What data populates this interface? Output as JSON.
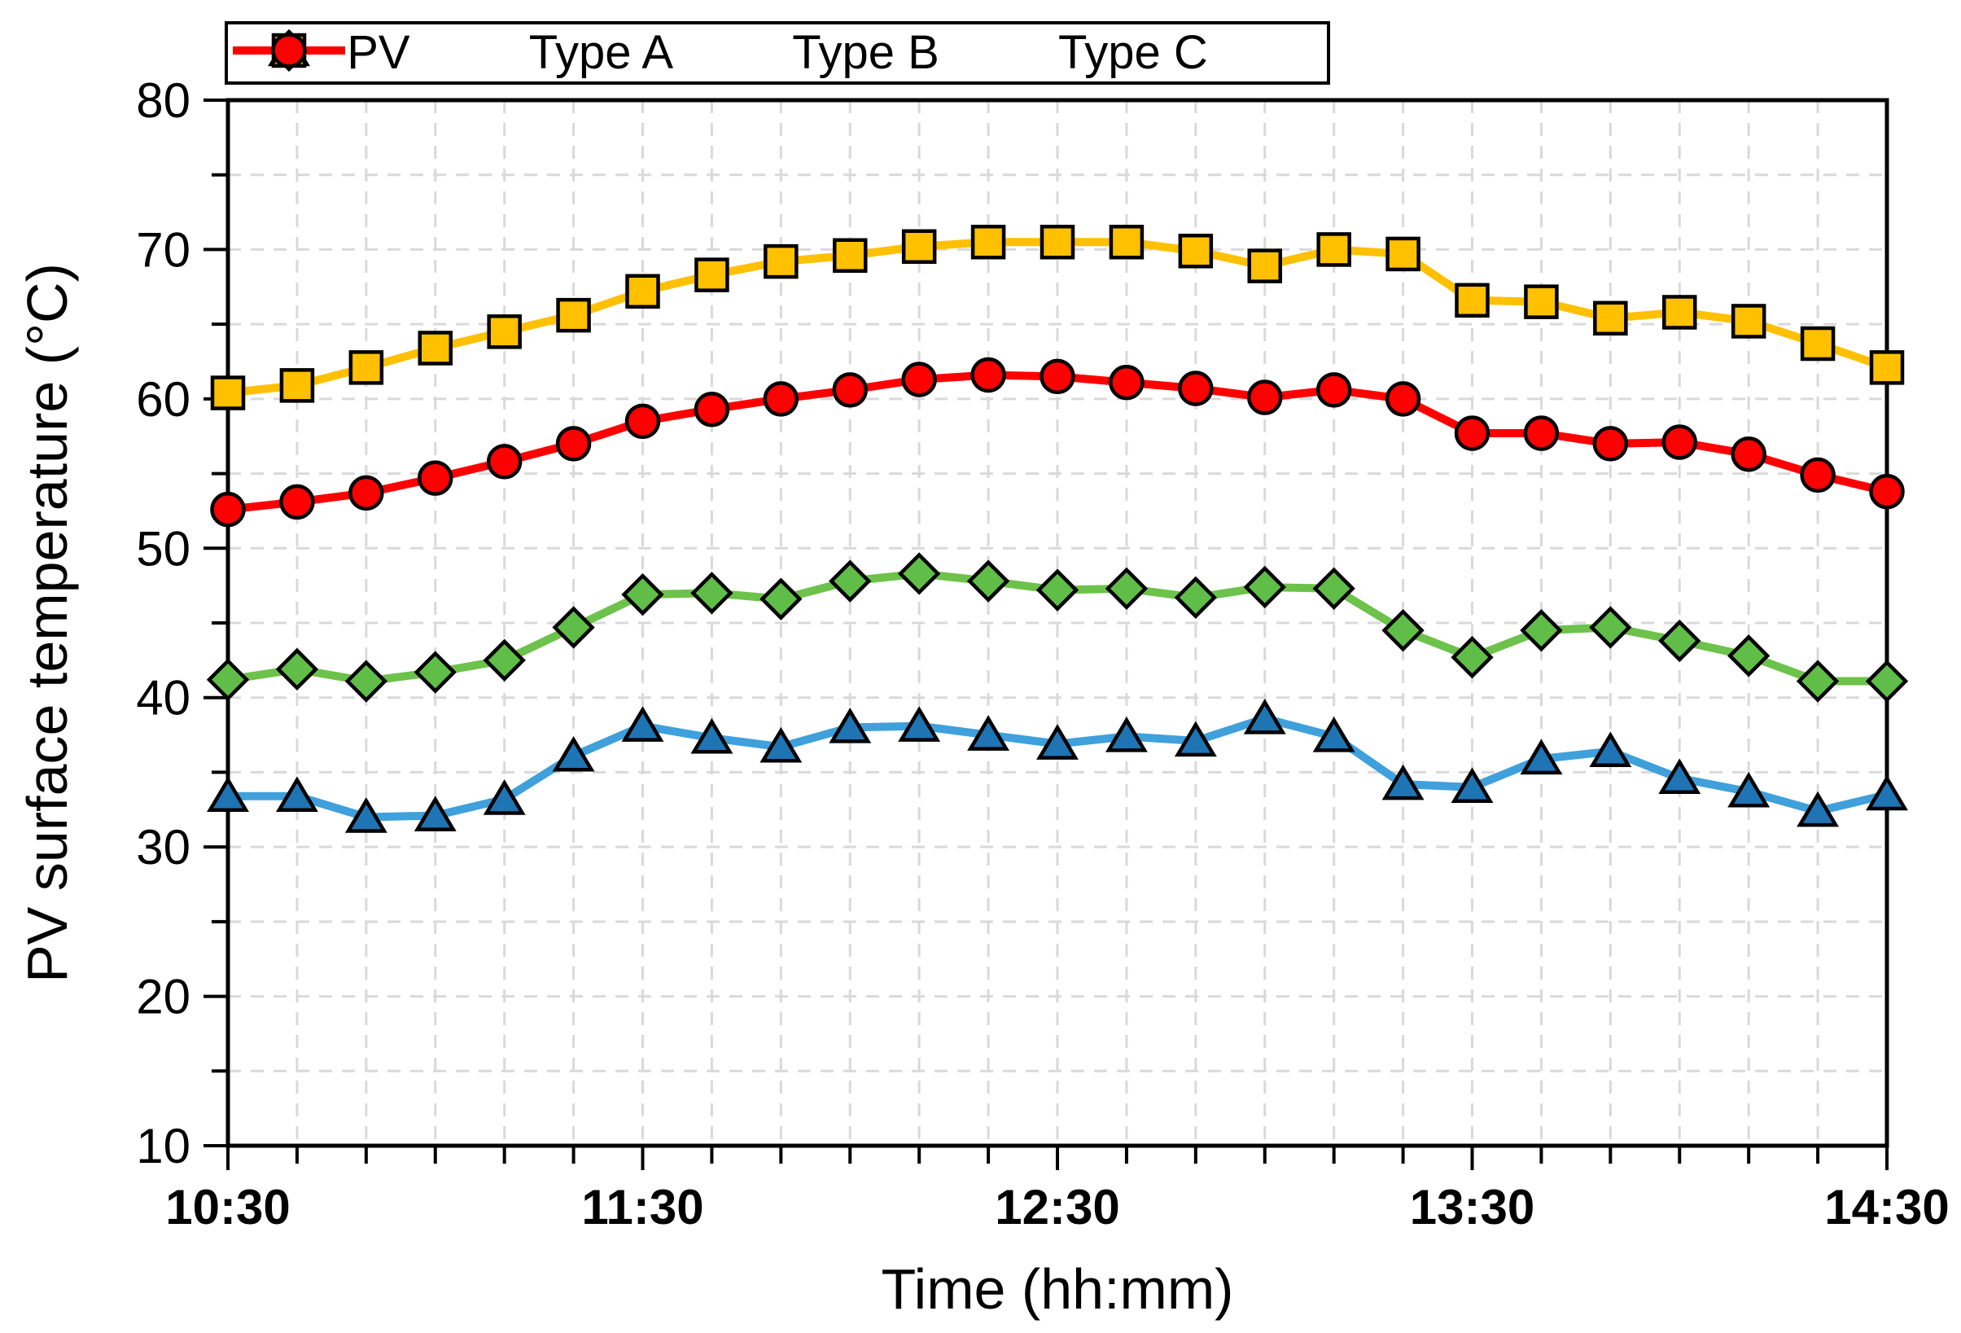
{
  "axes": {
    "x_title": "Time (hh:mm)",
    "y_title": "PV surface temperature (°C)"
  },
  "legend": {
    "items": [
      "PV",
      "Type A",
      "Type B",
      "Type C"
    ]
  },
  "chart_data": {
    "type": "line",
    "title": "",
    "xlabel": "Time (hh:mm)",
    "ylabel": "PV surface temperature (°C)",
    "x": [
      "10:30",
      "10:40",
      "10:50",
      "11:00",
      "11:10",
      "11:20",
      "11:30",
      "11:40",
      "11:50",
      "12:00",
      "12:10",
      "12:20",
      "12:30",
      "12:40",
      "12:50",
      "13:00",
      "13:10",
      "13:20",
      "13:30",
      "13:40",
      "13:50",
      "14:00",
      "14:10",
      "14:20",
      "14:30"
    ],
    "x_major_tick_labels": [
      "10:30",
      "11:30",
      "12:30",
      "13:30",
      "14:30"
    ],
    "x_major_tick_indices": [
      0,
      6,
      12,
      18,
      24
    ],
    "y_tick_labels": [
      10,
      20,
      30,
      40,
      50,
      60,
      70,
      80
    ],
    "ylim": [
      10,
      80
    ],
    "y_major_step": 10,
    "y_minor_step": 5,
    "grid": "minor-dashed-both-axes",
    "legend_position": "top",
    "grid_color": "#d9d9d9",
    "axis_color": "#000000",
    "series": [
      {
        "name": "PV",
        "marker": "diamond",
        "line_color": "#6cc24a",
        "marker_fill": "#5fbd48",
        "marker_stroke": "#000000",
        "values": [
          41.2,
          41.9,
          41.1,
          41.7,
          42.5,
          44.7,
          46.9,
          47.0,
          46.6,
          47.8,
          48.3,
          47.8,
          47.2,
          47.3,
          46.7,
          47.4,
          47.3,
          44.5,
          42.7,
          44.5,
          44.7,
          43.8,
          42.8,
          41.1,
          41.1
        ]
      },
      {
        "name": "Type A",
        "marker": "triangle",
        "line_color": "#3fa0dc",
        "marker_fill": "#1f74b4",
        "marker_stroke": "#000000",
        "values": [
          33.4,
          33.4,
          32.0,
          32.1,
          33.2,
          36.1,
          38.1,
          37.3,
          36.7,
          38.0,
          38.1,
          37.5,
          36.9,
          37.4,
          37.1,
          38.6,
          37.4,
          34.2,
          34.0,
          35.9,
          36.4,
          34.6,
          33.7,
          32.4,
          33.5
        ]
      },
      {
        "name": "Type B",
        "marker": "square",
        "line_color": "#ffc000",
        "marker_fill": "#ffc000",
        "marker_stroke": "#000000",
        "values": [
          60.4,
          60.9,
          62.1,
          63.4,
          64.5,
          65.6,
          67.2,
          68.3,
          69.2,
          69.6,
          70.2,
          70.5,
          70.5,
          70.5,
          69.9,
          68.9,
          70.0,
          69.7,
          66.6,
          66.5,
          65.4,
          65.8,
          65.2,
          63.7,
          62.1
        ]
      },
      {
        "name": "Type C",
        "marker": "circle",
        "line_color": "#ff0000",
        "marker_fill": "#ff0000",
        "marker_stroke": "#000000",
        "values": [
          52.6,
          53.1,
          53.7,
          54.7,
          55.8,
          57.0,
          58.5,
          59.3,
          60.0,
          60.6,
          61.3,
          61.6,
          61.5,
          61.1,
          60.7,
          60.1,
          60.6,
          60.0,
          57.7,
          57.7,
          57.0,
          57.1,
          56.3,
          54.9,
          53.8
        ]
      }
    ]
  }
}
